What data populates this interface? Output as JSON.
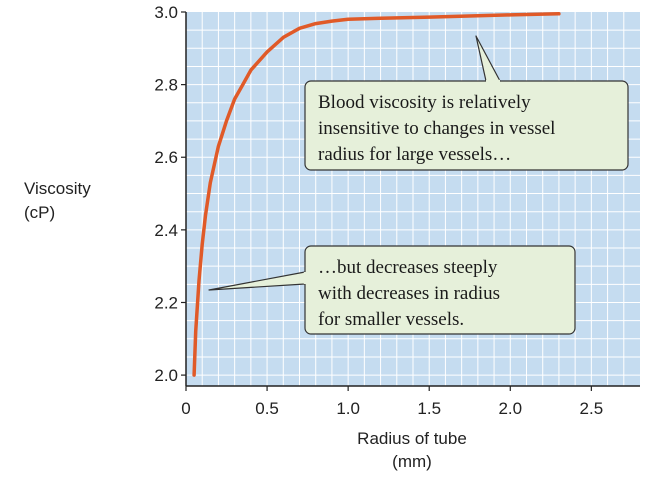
{
  "chart_data": {
    "type": "line",
    "title": "",
    "xlabel_lines": [
      "Radius of tube",
      "(mm)"
    ],
    "ylabel_lines": [
      "Viscosity",
      "(cP)"
    ],
    "xlim": [
      0,
      2.8
    ],
    "ylim": [
      1.97,
      3.0
    ],
    "xticks": [
      0,
      0.5,
      1.0,
      1.5,
      2.0,
      2.5
    ],
    "xtick_labels": [
      "0",
      "0.5",
      "1.0",
      "1.5",
      "2.0",
      "2.5"
    ],
    "yticks": [
      2.0,
      2.2,
      2.4,
      2.6,
      2.8,
      3.0
    ],
    "ytick_labels": [
      "2.0",
      "2.2",
      "2.4",
      "2.6",
      "2.8",
      "3.0"
    ],
    "grid": true,
    "colors": {
      "plot_background": "#c5dcf0",
      "grid": "#ffffff",
      "line": "#e05a28",
      "callout_fill": "#e6f0da",
      "callout_border": "#333333"
    },
    "series": [
      {
        "x": [
          0.05,
          0.06,
          0.08,
          0.1,
          0.12,
          0.15,
          0.2,
          0.25,
          0.3,
          0.35,
          0.4,
          0.5,
          0.6,
          0.7,
          0.8,
          0.9,
          1.0,
          1.2,
          1.5,
          2.0,
          2.3
        ],
        "y": [
          2.0,
          2.12,
          2.26,
          2.36,
          2.44,
          2.53,
          2.63,
          2.7,
          2.76,
          2.8,
          2.84,
          2.89,
          2.93,
          2.955,
          2.968,
          2.975,
          2.98,
          2.983,
          2.986,
          2.992,
          2.995
        ]
      }
    ],
    "annotations": [
      {
        "lines": [
          "Blood viscosity is relatively",
          "insensitive to changes in vessel",
          "radius for large vessels…"
        ],
        "points_to": [
          1.8,
          2.97
        ]
      },
      {
        "lines": [
          "…but decreases steeply",
          "with decreases in radius",
          "for smaller vessels."
        ],
        "points_to": [
          0.08,
          2.22
        ]
      }
    ]
  }
}
